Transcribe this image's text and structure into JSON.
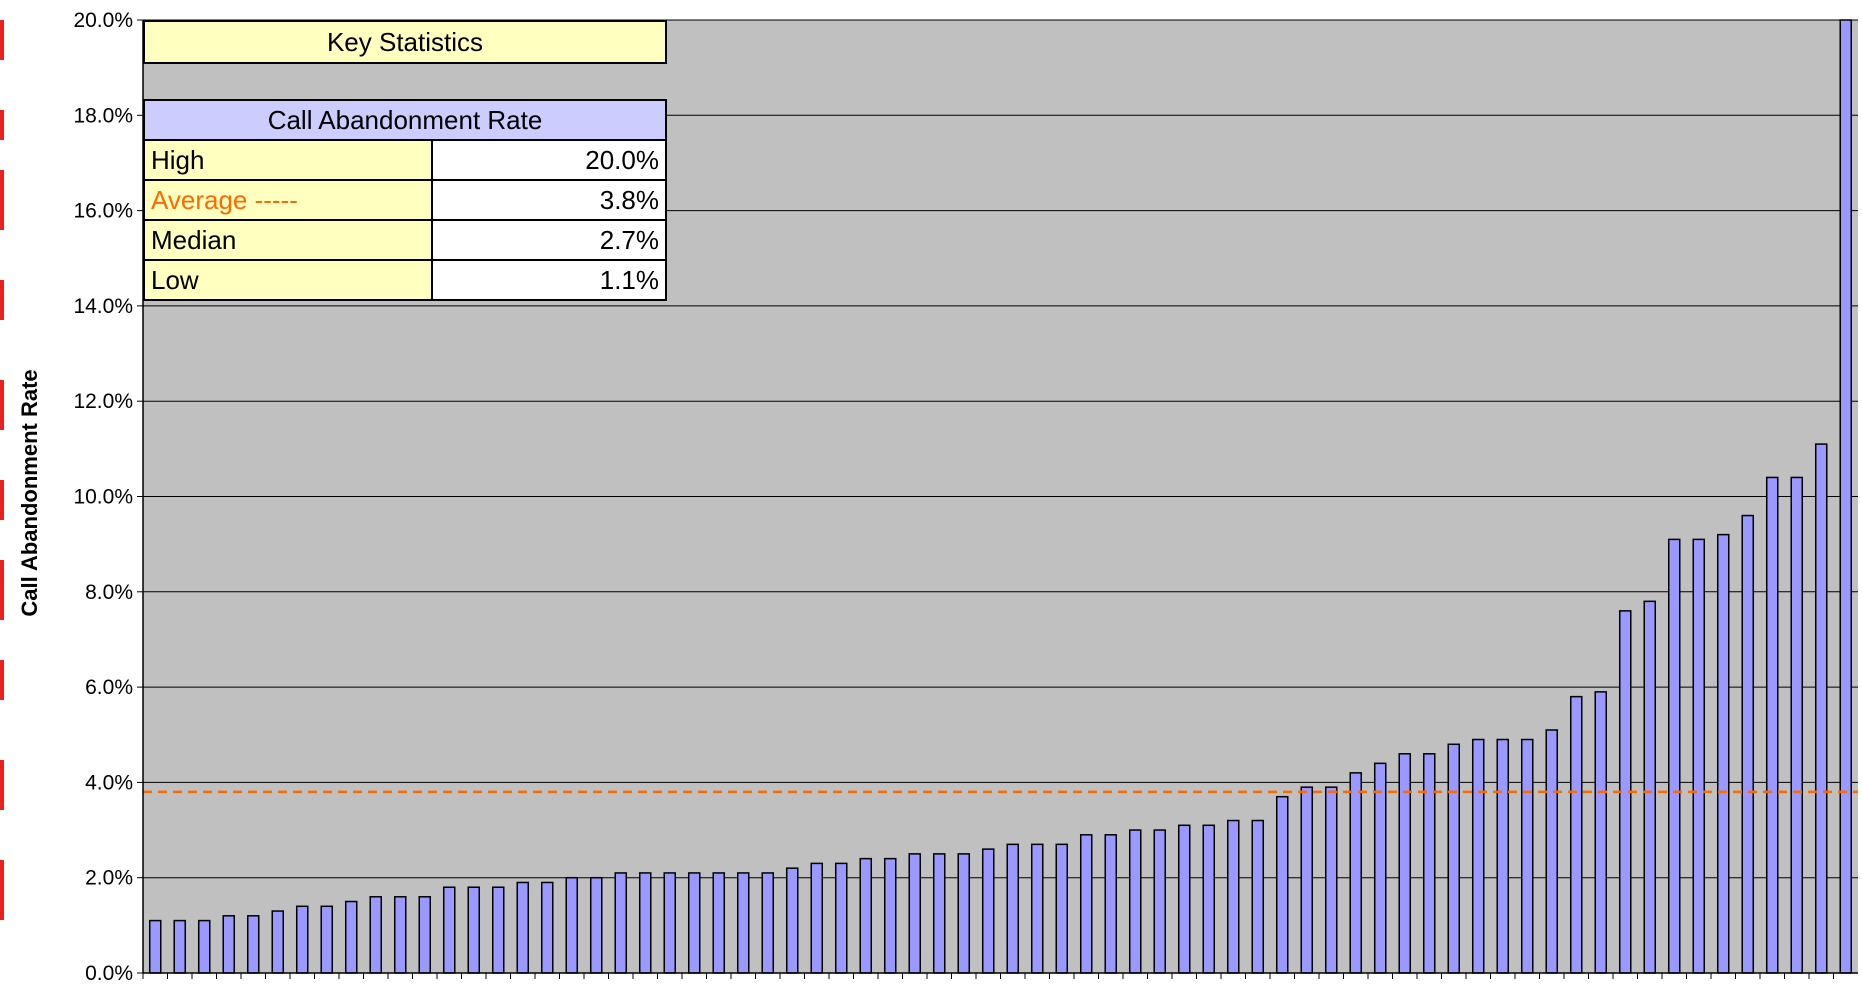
{
  "chart_data": {
    "type": "bar",
    "ylabel": "Call Abandonment Rate",
    "xlabel": "",
    "ylim": [
      0,
      20
    ],
    "y_ticks": [
      "0.0%",
      "2.0%",
      "4.0%",
      "6.0%",
      "8.0%",
      "10.0%",
      "12.0%",
      "14.0%",
      "16.0%",
      "18.0%",
      "20.0%"
    ],
    "grid": true,
    "plot_background": "#c0c0c0",
    "bar_color": "#9999ff",
    "average_line": {
      "value": 3.8,
      "color": "#ff6a00",
      "style": "dashed"
    },
    "values": [
      1.1,
      1.1,
      1.1,
      1.2,
      1.2,
      1.3,
      1.4,
      1.4,
      1.5,
      1.6,
      1.6,
      1.6,
      1.8,
      1.8,
      1.8,
      1.9,
      1.9,
      2.0,
      2.0,
      2.1,
      2.1,
      2.1,
      2.1,
      2.1,
      2.1,
      2.1,
      2.2,
      2.3,
      2.3,
      2.4,
      2.4,
      2.5,
      2.5,
      2.5,
      2.6,
      2.7,
      2.7,
      2.7,
      2.9,
      2.9,
      3.0,
      3.0,
      3.1,
      3.1,
      3.2,
      3.2,
      3.7,
      3.9,
      3.9,
      4.2,
      4.4,
      4.6,
      4.6,
      4.8,
      4.9,
      4.9,
      4.9,
      5.1,
      5.8,
      5.9,
      7.6,
      7.8,
      9.1,
      9.1,
      9.2,
      9.6,
      10.4,
      10.4,
      11.1,
      20.0
    ]
  },
  "key_statistics": {
    "title": "Key Statistics",
    "header": "Call Abandonment Rate",
    "rows": [
      {
        "label": "High",
        "value": "20.0%"
      },
      {
        "label": "Average -----",
        "value": "3.8%"
      },
      {
        "label": "Median",
        "value": "2.7%"
      },
      {
        "label": "Low",
        "value": "1.1%"
      }
    ]
  }
}
